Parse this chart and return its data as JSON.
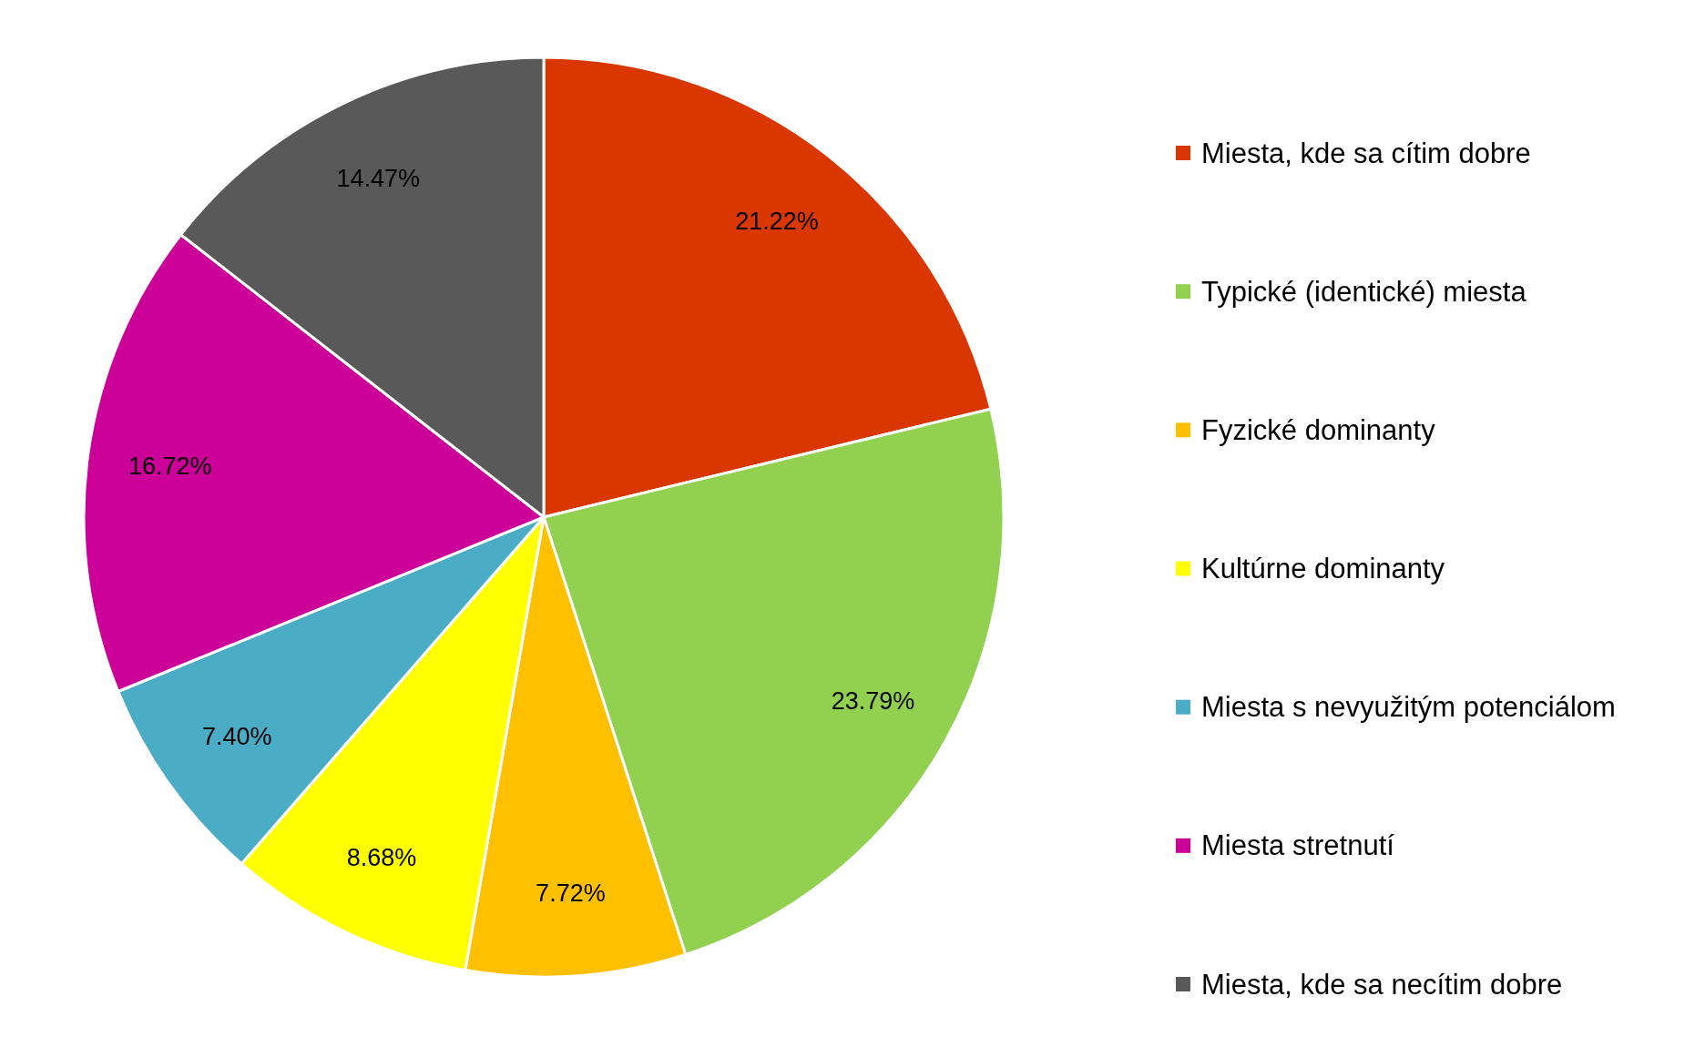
{
  "chart_data": {
    "type": "pie",
    "categories": [
      "Miesta, kde sa cítim dobre",
      "Typické (identické) miesta",
      "Fyzické dominanty",
      "Kultúrne dominanty",
      "Miesta s nevyužitým potenciálom",
      "Miesta stretnutí",
      "Miesta, kde sa necítim dobre"
    ],
    "values": [
      21.22,
      23.79,
      7.72,
      8.68,
      7.4,
      16.72,
      14.47
    ],
    "value_labels": [
      "21.22%",
      "23.79%",
      "7.72%",
      "8.68%",
      "7.40%",
      "16.72%",
      "14.47%"
    ],
    "colors": [
      "#d93600",
      "#92d050",
      "#ffc000",
      "#ffff00",
      "#4bacc6",
      "#cc0099",
      "#595959"
    ],
    "legend": "right"
  }
}
